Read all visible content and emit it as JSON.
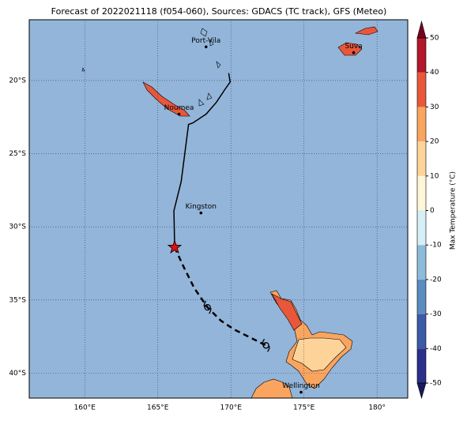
{
  "title": "Forecast of 2022021118 (f054-060), Sources: GDACS (TC track), GFS (Meteo)",
  "map": {
    "xlim": [
      156.2,
      182.1
    ],
    "ylim": [
      -41.7,
      -15.85
    ],
    "xticks": [
      {
        "value": 160,
        "label": "160°E"
      },
      {
        "value": 165,
        "label": "165°E"
      },
      {
        "value": 170,
        "label": "170°E"
      },
      {
        "value": 175,
        "label": "175°E"
      },
      {
        "value": 180,
        "label": "180°"
      }
    ],
    "yticks": [
      {
        "value": -20,
        "label": "20°S"
      },
      {
        "value": -25,
        "label": "25°S"
      },
      {
        "value": -30,
        "label": "30°S"
      },
      {
        "value": -35,
        "label": "35°S"
      },
      {
        "value": -40,
        "label": "40°S"
      }
    ],
    "ocean_color": "#93b5d9"
  },
  "places": [
    {
      "name": "Port-Vila",
      "lon": 168.3,
      "lat": -17.7
    },
    {
      "name": "Suva",
      "lon": 178.4,
      "lat": -18.1
    },
    {
      "name": "Noumea",
      "lon": 166.45,
      "lat": -22.3
    },
    {
      "name": "Kingston",
      "lon": 167.95,
      "lat": -29.05
    },
    {
      "name": "Wellington",
      "lon": 174.8,
      "lat": -41.3
    }
  ],
  "track": {
    "past": {
      "lon": [
        169.85,
        169.95,
        169.6,
        169.0,
        168.3,
        167.4,
        167.1,
        166.6,
        166.1,
        166.15
      ],
      "lat": [
        -19.5,
        -20.1,
        -20.6,
        -21.5,
        -22.3,
        -22.9,
        -23.0,
        -26.9,
        -28.9,
        -31.4
      ]
    },
    "forecast": {
      "lon": [
        166.15,
        166.8,
        167.5,
        168.4,
        169.3,
        170.2,
        171.4,
        172.4
      ],
      "lat": [
        -31.4,
        -32.8,
        -34.2,
        -35.5,
        -36.4,
        -37.0,
        -37.6,
        -38.1
      ]
    }
  },
  "colorbar": {
    "label": "Max Temperature (°C)",
    "lim": [
      -50,
      50
    ],
    "ticks": [
      -50,
      -40,
      -30,
      -20,
      -10,
      0,
      10,
      20,
      30,
      40,
      50
    ],
    "colors": [
      "#2b2f8c",
      "#3b5aa8",
      "#5b8cc0",
      "#8cbcd9",
      "#d6eef5",
      "#fef6d8",
      "#fdd39a",
      "#f9a560",
      "#e9573b",
      "#b3172a"
    ],
    "under_color": "#1a1a5e",
    "over_color": "#7a0020"
  }
}
